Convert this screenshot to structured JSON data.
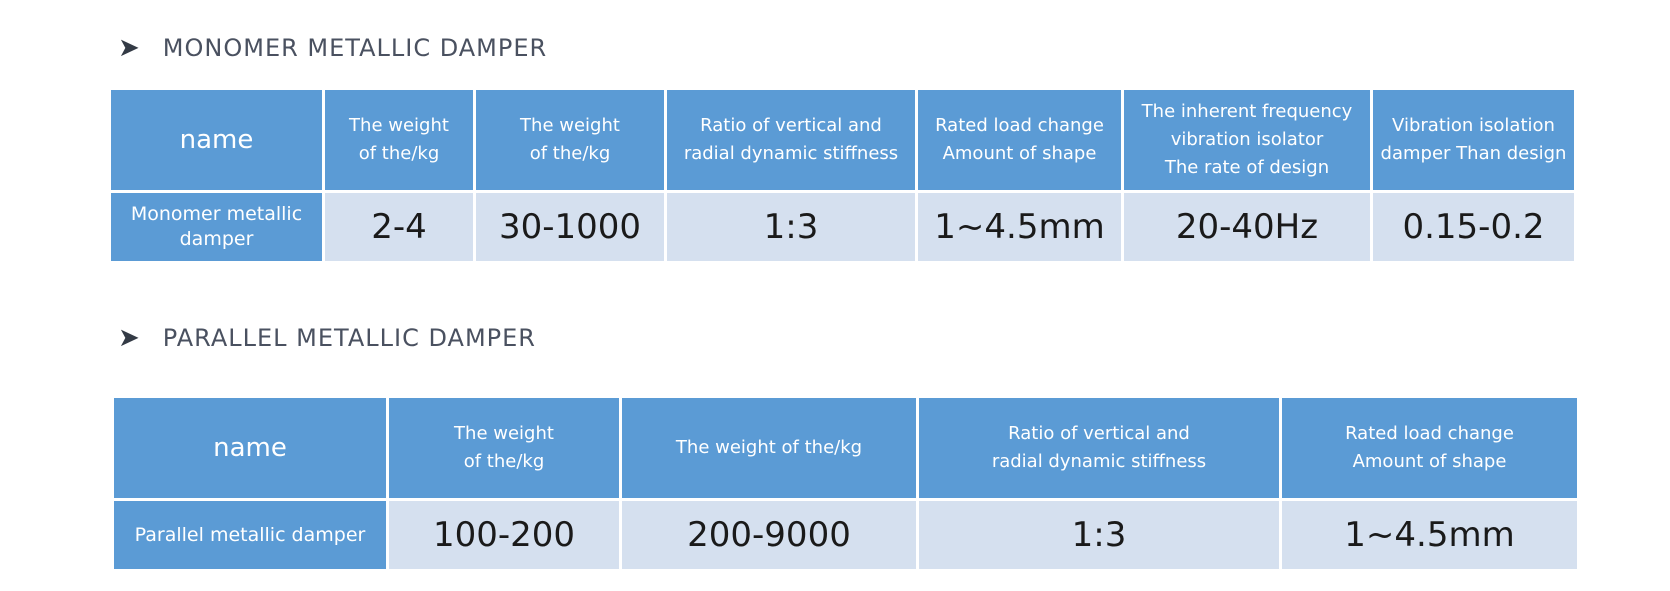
{
  "sections": [
    {
      "title": "MONOMER METALLIC DAMPER",
      "headers": [
        "name",
        "The weight\nof the/kg",
        "The weight\nof the/kg",
        "Ratio of vertical and\nradial dynamic stiffness",
        "Rated load change\nAmount of shape",
        "The inherent frequency\nvibration isolator\nThe rate of design",
        "Vibration isolation\ndamper Than design"
      ],
      "row": {
        "label": "Monomer metallic\ndamper",
        "values": [
          "2-4",
          "30-1000",
          "1:3",
          "1~4.5mm",
          "20-40Hz",
          "0.15-0.2"
        ]
      }
    },
    {
      "title": "PARALLEL METALLIC DAMPER",
      "headers": [
        "name",
        "The weight\nof the/kg",
        "The weight of the/kg",
        "Ratio of vertical and\nradial dynamic stiffness",
        "Rated load change\nAmount of shape"
      ],
      "row": {
        "label": "Parallel metallic damper",
        "values": [
          "100-200",
          "200-9000",
          "1:3",
          "1~4.5mm"
        ]
      }
    }
  ]
}
